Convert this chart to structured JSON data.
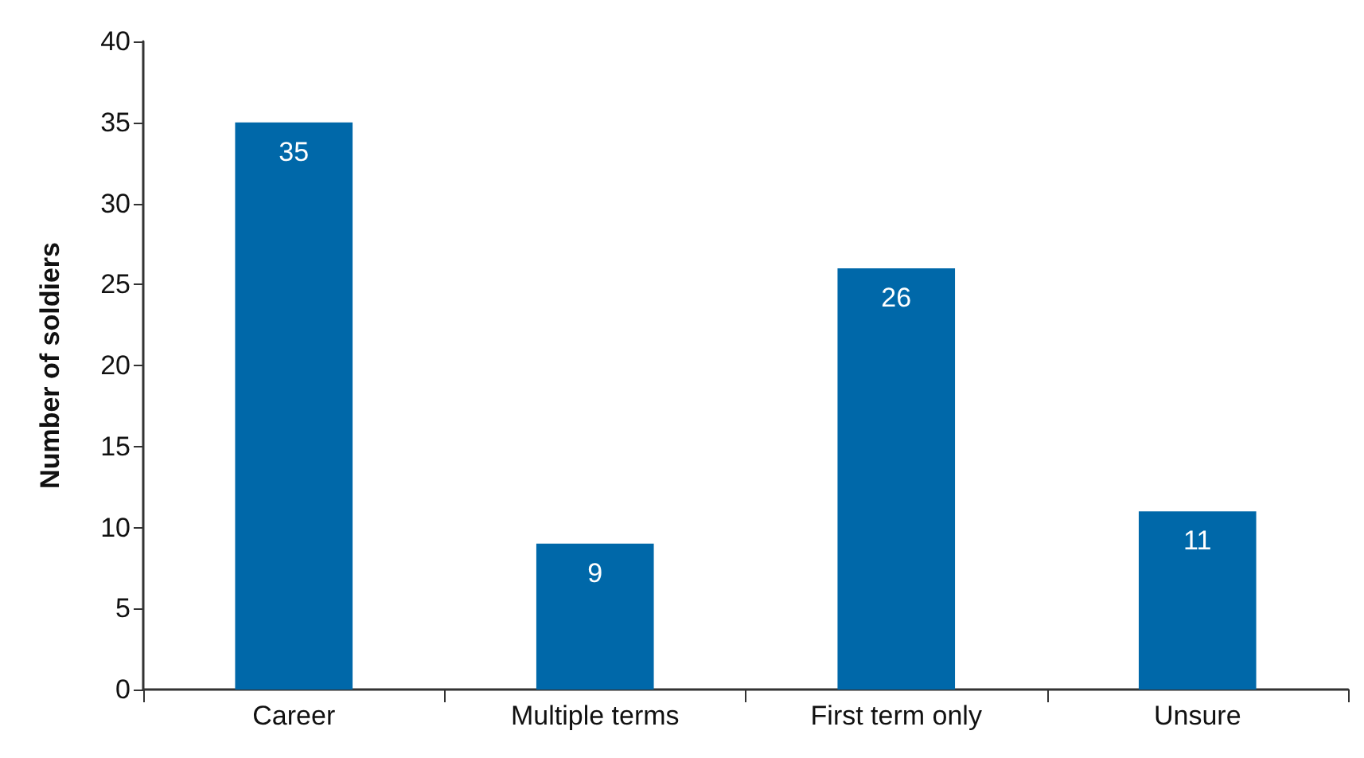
{
  "chart_data": {
    "type": "bar",
    "ylabel": "Number of soldiers",
    "categories": [
      "Career",
      "Multiple terms",
      "First term only",
      "Unsure"
    ],
    "values": [
      35,
      9,
      26,
      11
    ],
    "color": "#0068a9",
    "ylim": [
      0,
      40
    ],
    "yticks": [
      0,
      5,
      10,
      15,
      20,
      25,
      30,
      35,
      40
    ],
    "grid": false,
    "data_labels": true
  }
}
